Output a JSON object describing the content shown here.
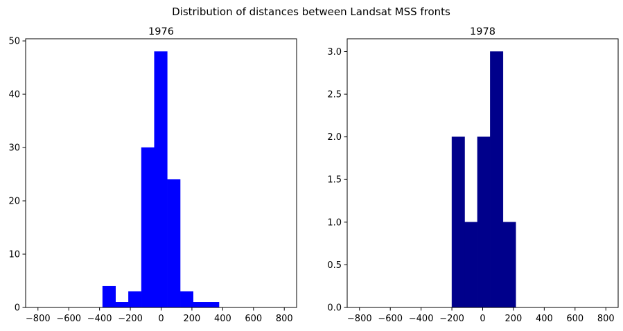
{
  "figure": {
    "suptitle": "Distribution of distances between Landsat MSS fronts"
  },
  "chart_data": [
    {
      "type": "bar",
      "title": "1976",
      "xlabel": "",
      "ylabel": "",
      "color": "#0000ff",
      "xlim": [
        -880,
        880
      ],
      "ylim": [
        0,
        50.4
      ],
      "xticks": [
        -800,
        -600,
        -400,
        -200,
        0,
        200,
        400,
        600,
        800
      ],
      "xtick_labels": [
        "−800",
        "−600",
        "−400",
        "−200",
        "0",
        "200",
        "400",
        "600",
        "800"
      ],
      "yticks": [
        0,
        10,
        20,
        30,
        40,
        50
      ],
      "ytick_labels": [
        "0",
        "10",
        "20",
        "30",
        "40",
        "50"
      ],
      "grid": false,
      "bins": [
        {
          "x0": -380,
          "x1": -296,
          "value": 4
        },
        {
          "x0": -296,
          "x1": -212,
          "value": 1
        },
        {
          "x0": -212,
          "x1": -128,
          "value": 3
        },
        {
          "x0": -128,
          "x1": -44,
          "value": 30
        },
        {
          "x0": -44,
          "x1": 40,
          "value": 48
        },
        {
          "x0": 40,
          "x1": 124,
          "value": 24
        },
        {
          "x0": 124,
          "x1": 208,
          "value": 3
        },
        {
          "x0": 208,
          "x1": 292,
          "value": 1
        },
        {
          "x0": 292,
          "x1": 376,
          "value": 1
        }
      ]
    },
    {
      "type": "bar",
      "title": "1978",
      "xlabel": "",
      "ylabel": "",
      "color": "#00008b",
      "xlim": [
        -880,
        880
      ],
      "ylim": [
        0,
        3.15
      ],
      "xticks": [
        -800,
        -600,
        -400,
        -200,
        0,
        200,
        400,
        600,
        800
      ],
      "xtick_labels": [
        "−800",
        "−600",
        "−400",
        "−200",
        "0",
        "200",
        "400",
        "600",
        "800"
      ],
      "yticks": [
        0,
        0.5,
        1.0,
        1.5,
        2.0,
        2.5,
        3.0
      ],
      "ytick_labels": [
        "0.0",
        "0.5",
        "1.0",
        "1.5",
        "2.0",
        "2.5",
        "3.0"
      ],
      "grid": false,
      "bins": [
        {
          "x0": -200,
          "x1": -117,
          "value": 2
        },
        {
          "x0": -117,
          "x1": -34,
          "value": 1
        },
        {
          "x0": -34,
          "x1": 49,
          "value": 2
        },
        {
          "x0": 49,
          "x1": 132,
          "value": 3
        },
        {
          "x0": 132,
          "x1": 215,
          "value": 1
        }
      ]
    }
  ]
}
